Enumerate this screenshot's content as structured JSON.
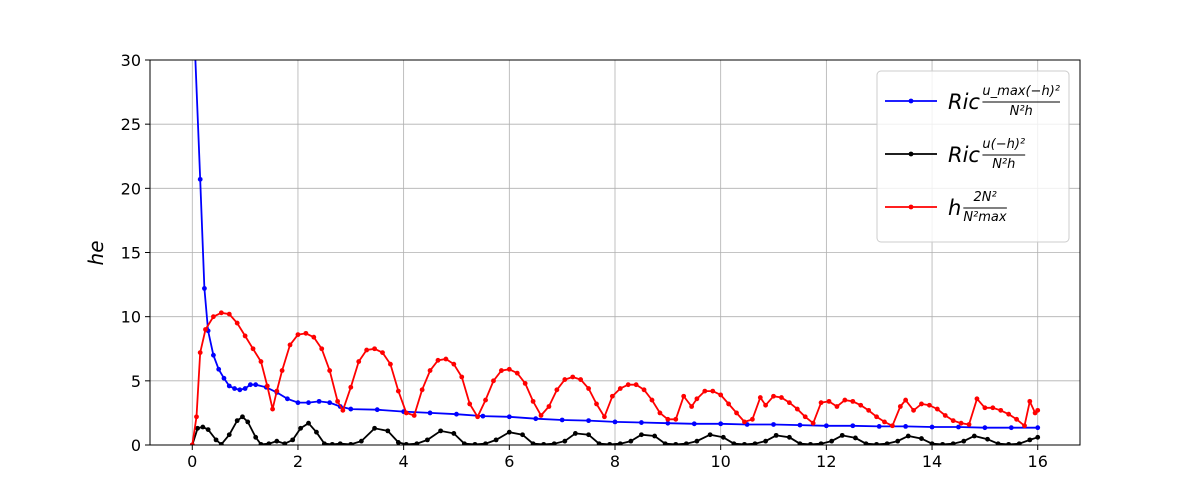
{
  "chart_data": {
    "type": "line",
    "title": "",
    "xlabel": "",
    "ylabel": "he",
    "xlim": [
      -0.8,
      16.8
    ],
    "ylim": [
      0,
      30
    ],
    "xticks": [
      0,
      2,
      4,
      6,
      8,
      10,
      12,
      14,
      16
    ],
    "yticks": [
      0,
      5,
      10,
      15,
      20,
      25,
      30
    ],
    "grid": true,
    "legend": "top-right",
    "series": [
      {
        "name": "Ric u_max(−h)² / N²h",
        "legend_main": "Ric",
        "legend_num": "u_max(−h)²",
        "legend_den": "N²h",
        "color": "#0000ff",
        "x": [
          0,
          0.15,
          0.23,
          0.3,
          0.4,
          0.5,
          0.6,
          0.7,
          0.8,
          0.9,
          1.0,
          1.1,
          1.2,
          1.4,
          1.6,
          1.8,
          2.0,
          2.2,
          2.4,
          2.6,
          2.8,
          3.0,
          3.5,
          4.0,
          4.5,
          5.0,
          5.5,
          6.0,
          6.5,
          7.0,
          7.5,
          8.0,
          8.5,
          9.0,
          9.5,
          10.0,
          10.5,
          11.0,
          11.5,
          12.0,
          12.5,
          13.0,
          13.5,
          14.0,
          14.5,
          15.0,
          15.5,
          16.0
        ],
        "y": [
          36,
          20.7,
          12.2,
          8.9,
          7.0,
          5.9,
          5.2,
          4.6,
          4.4,
          4.3,
          4.4,
          4.7,
          4.7,
          4.5,
          4.1,
          3.6,
          3.3,
          3.3,
          3.4,
          3.3,
          3.0,
          2.8,
          2.75,
          2.6,
          2.5,
          2.4,
          2.25,
          2.2,
          2.05,
          1.95,
          1.9,
          1.8,
          1.75,
          1.7,
          1.65,
          1.65,
          1.6,
          1.6,
          1.55,
          1.5,
          1.5,
          1.45,
          1.45,
          1.4,
          1.4,
          1.35,
          1.35,
          1.35
        ]
      },
      {
        "name": "Ric u(−h)² / N²h",
        "legend_main": "Ric",
        "legend_num": "u(−h)²",
        "legend_den": "N²h",
        "color": "#000000",
        "x": [
          0,
          0.1,
          0.2,
          0.3,
          0.45,
          0.55,
          0.7,
          0.85,
          0.95,
          1.05,
          1.2,
          1.3,
          1.45,
          1.6,
          1.75,
          1.9,
          2.05,
          2.2,
          2.35,
          2.5,
          2.65,
          2.8,
          3.0,
          3.2,
          3.45,
          3.7,
          3.9,
          4.05,
          4.25,
          4.45,
          4.7,
          4.95,
          5.15,
          5.35,
          5.55,
          5.75,
          6.0,
          6.25,
          6.45,
          6.65,
          6.85,
          7.05,
          7.25,
          7.5,
          7.7,
          7.9,
          8.1,
          8.3,
          8.5,
          8.75,
          8.95,
          9.15,
          9.35,
          9.55,
          9.8,
          10.05,
          10.25,
          10.45,
          10.65,
          10.85,
          11.05,
          11.3,
          11.5,
          11.7,
          11.9,
          12.1,
          12.3,
          12.55,
          12.75,
          12.95,
          13.15,
          13.35,
          13.55,
          13.8,
          14.0,
          14.2,
          14.4,
          14.6,
          14.8,
          15.05,
          15.25,
          15.45,
          15.65,
          15.85,
          16.0
        ],
        "y": [
          0,
          1.3,
          1.4,
          1.2,
          0.4,
          0.05,
          0.8,
          1.9,
          2.2,
          1.8,
          0.6,
          0.05,
          0.1,
          0.3,
          0.1,
          0.4,
          1.3,
          1.7,
          1.0,
          0.1,
          0.05,
          0.1,
          0.05,
          0.3,
          1.3,
          1.1,
          0.2,
          0.05,
          0.1,
          0.4,
          1.1,
          0.9,
          0.1,
          0.05,
          0.1,
          0.4,
          1.0,
          0.8,
          0.1,
          0.05,
          0.1,
          0.3,
          0.9,
          0.8,
          0.1,
          0.05,
          0.1,
          0.3,
          0.8,
          0.7,
          0.1,
          0.05,
          0.1,
          0.3,
          0.8,
          0.6,
          0.1,
          0.05,
          0.1,
          0.3,
          0.75,
          0.6,
          0.1,
          0.05,
          0.1,
          0.3,
          0.75,
          0.55,
          0.1,
          0.05,
          0.1,
          0.3,
          0.7,
          0.5,
          0.1,
          0.05,
          0.1,
          0.3,
          0.7,
          0.45,
          0.1,
          0.05,
          0.1,
          0.4,
          0.6
        ]
      },
      {
        "name": "h 2N² / N²max",
        "legend_main": "h",
        "legend_num": "2N²",
        "legend_den": "N²max",
        "color": "#ff0000",
        "x": [
          0,
          0.08,
          0.15,
          0.25,
          0.4,
          0.55,
          0.7,
          0.85,
          1.0,
          1.15,
          1.3,
          1.42,
          1.52,
          1.6,
          1.7,
          1.85,
          2.0,
          2.15,
          2.3,
          2.45,
          2.6,
          2.75,
          2.85,
          3.0,
          3.15,
          3.3,
          3.45,
          3.6,
          3.75,
          3.9,
          4.05,
          4.2,
          4.35,
          4.5,
          4.65,
          4.8,
          4.95,
          5.1,
          5.25,
          5.4,
          5.55,
          5.7,
          5.85,
          6.0,
          6.15,
          6.3,
          6.45,
          6.6,
          6.75,
          6.9,
          7.05,
          7.2,
          7.35,
          7.5,
          7.65,
          7.8,
          7.95,
          8.1,
          8.25,
          8.4,
          8.55,
          8.7,
          8.85,
          9.0,
          9.15,
          9.3,
          9.45,
          9.55,
          9.7,
          9.85,
          10.0,
          10.15,
          10.3,
          10.45,
          10.6,
          10.75,
          10.85,
          11.0,
          11.15,
          11.3,
          11.45,
          11.6,
          11.75,
          11.9,
          12.05,
          12.2,
          12.35,
          12.5,
          12.65,
          12.8,
          12.95,
          13.1,
          13.25,
          13.4,
          13.5,
          13.65,
          13.8,
          13.95,
          14.1,
          14.25,
          14.4,
          14.55,
          14.7,
          14.85,
          15.0,
          15.15,
          15.3,
          15.45,
          15.6,
          15.75,
          15.85,
          15.95,
          16.0
        ],
        "y": [
          0,
          2.2,
          7.2,
          9.0,
          10.0,
          10.3,
          10.2,
          9.5,
          8.5,
          7.5,
          6.5,
          4.6,
          2.8,
          4.2,
          5.8,
          7.8,
          8.6,
          8.7,
          8.4,
          7.5,
          5.8,
          3.4,
          2.7,
          4.5,
          6.5,
          7.4,
          7.5,
          7.2,
          6.3,
          4.2,
          2.5,
          2.3,
          4.3,
          5.8,
          6.6,
          6.7,
          6.3,
          5.3,
          3.2,
          2.2,
          3.5,
          5.0,
          5.8,
          5.9,
          5.6,
          4.8,
          3.4,
          2.3,
          3.0,
          4.3,
          5.1,
          5.3,
          5.1,
          4.4,
          3.2,
          2.2,
          3.8,
          4.4,
          4.7,
          4.7,
          4.3,
          3.5,
          2.5,
          2.0,
          2.0,
          3.8,
          3.0,
          3.6,
          4.2,
          4.2,
          3.9,
          3.2,
          2.5,
          1.8,
          2.0,
          3.7,
          3.1,
          3.8,
          3.7,
          3.3,
          2.8,
          2.2,
          1.7,
          3.3,
          3.4,
          3.0,
          3.5,
          3.4,
          3.1,
          2.7,
          2.2,
          1.8,
          1.5,
          3.0,
          3.5,
          2.7,
          3.2,
          3.1,
          2.8,
          2.3,
          1.9,
          1.7,
          1.6,
          3.6,
          2.9,
          2.9,
          2.7,
          2.4,
          2.0,
          1.5,
          3.4,
          2.5,
          2.7
        ]
      }
    ]
  }
}
